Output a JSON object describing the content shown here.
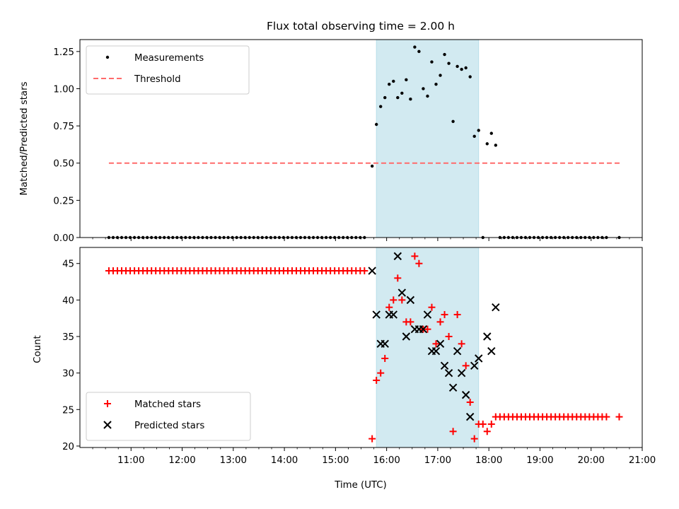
{
  "chart_data": [
    {
      "type": "scatter",
      "panel": "top",
      "title": "Flux total observing time = 2.00 h",
      "ylabel": "Matched/Predicted stars",
      "ylim": [
        0,
        1.33
      ],
      "yticks": [
        0.0,
        0.25,
        0.5,
        0.75,
        1.0,
        1.25
      ],
      "ytick_labels": [
        "0.00",
        "0.25",
        "0.50",
        "0.75",
        "1.00",
        "1.25"
      ],
      "highlight_span": {
        "start": "15:48",
        "end": "17:48",
        "color": "#add8e6"
      },
      "legend": {
        "placement": "top-left",
        "entries": [
          "Measurements",
          "Threshold"
        ]
      },
      "threshold": {
        "name": "Threshold",
        "value": 0.5,
        "x_start": "10:34",
        "x_end": "20:34",
        "color": "#ff6b6b"
      },
      "series": [
        {
          "name": "Measurements",
          "color": "#000000",
          "points": [
            [
              "15:43",
              0.48
            ],
            [
              "15:48",
              0.76
            ],
            [
              "15:53",
              0.88
            ],
            [
              "15:58",
              0.94
            ],
            [
              "16:03",
              1.03
            ],
            [
              "16:08",
              1.05
            ],
            [
              "16:13",
              0.94
            ],
            [
              "16:18",
              0.97
            ],
            [
              "16:23",
              1.06
            ],
            [
              "16:28",
              0.93
            ],
            [
              "16:33",
              1.28
            ],
            [
              "16:38",
              1.25
            ],
            [
              "16:43",
              1.0
            ],
            [
              "16:48",
              0.95
            ],
            [
              "16:53",
              1.18
            ],
            [
              "16:58",
              1.03
            ],
            [
              "17:03",
              1.09
            ],
            [
              "17:08",
              1.23
            ],
            [
              "17:13",
              1.17
            ],
            [
              "17:18",
              0.78
            ],
            [
              "17:23",
              1.15
            ],
            [
              "17:28",
              1.13
            ],
            [
              "17:33",
              1.14
            ],
            [
              "17:38",
              1.08
            ],
            [
              "17:43",
              0.68
            ],
            [
              "17:48",
              0.72
            ],
            [
              "17:53",
              0.0
            ],
            [
              "17:58",
              0.63
            ],
            [
              "18:03",
              0.7
            ],
            [
              "18:08",
              0.62
            ],
            [
              "20:33",
              0.0
            ]
          ],
          "zero_runs": [
            {
              "from": "10:34",
              "to": "13:29",
              "step_min": 5,
              "value": 0
            },
            {
              "from": "13:34",
              "to": "15:38",
              "step_min": 5,
              "value": 0
            },
            {
              "from": "18:13",
              "to": "20:18",
              "step_min": 5,
              "value": 0
            }
          ]
        }
      ]
    },
    {
      "type": "scatter",
      "panel": "bottom",
      "xlabel": "Time (UTC)",
      "ylabel": "Count",
      "xlim": [
        "10:00",
        "21:00"
      ],
      "ylim": [
        19.8,
        47.2
      ],
      "yticks": [
        20,
        25,
        30,
        35,
        40,
        45
      ],
      "ytick_labels": [
        "20",
        "25",
        "30",
        "35",
        "40",
        "45"
      ],
      "xticks": [
        "11:00",
        "12:00",
        "13:00",
        "14:00",
        "15:00",
        "16:00",
        "17:00",
        "18:00",
        "19:00",
        "20:00",
        "21:00"
      ],
      "highlight_span": {
        "start": "15:48",
        "end": "17:48",
        "color": "#add8e6"
      },
      "legend": {
        "placement": "bottom-left",
        "entries": [
          "Matched stars",
          "Predicted stars"
        ]
      },
      "series": [
        {
          "name": "Matched stars",
          "marker": "+",
          "color": "#ff0000",
          "points": [
            [
              "15:43",
              21
            ],
            [
              "15:48",
              29
            ],
            [
              "15:53",
              30
            ],
            [
              "15:58",
              32
            ],
            [
              "16:03",
              39
            ],
            [
              "16:08",
              40
            ],
            [
              "16:13",
              43
            ],
            [
              "16:18",
              40
            ],
            [
              "16:23",
              37
            ],
            [
              "16:28",
              37
            ],
            [
              "16:33",
              46
            ],
            [
              "16:38",
              45
            ],
            [
              "16:43",
              36
            ],
            [
              "16:48",
              36
            ],
            [
              "16:53",
              39
            ],
            [
              "16:58",
              34
            ],
            [
              "17:03",
              37
            ],
            [
              "17:08",
              38
            ],
            [
              "17:13",
              35
            ],
            [
              "17:18",
              22
            ],
            [
              "17:23",
              38
            ],
            [
              "17:28",
              34
            ],
            [
              "17:33",
              31
            ],
            [
              "17:38",
              26
            ],
            [
              "17:43",
              21
            ],
            [
              "17:48",
              23
            ],
            [
              "17:53",
              23
            ],
            [
              "17:58",
              22
            ],
            [
              "18:03",
              23
            ]
          ],
          "constant_runs": [
            {
              "from": "10:34",
              "to": "13:29",
              "step_min": 5,
              "value": 44
            },
            {
              "from": "13:34",
              "to": "15:38",
              "step_min": 5,
              "value": 44
            },
            {
              "from": "18:08",
              "to": "20:18",
              "step_min": 5,
              "value": 24
            },
            {
              "from": "20:33",
              "to": "20:33",
              "step_min": 5,
              "value": 24
            }
          ]
        },
        {
          "name": "Predicted stars",
          "marker": "x",
          "color": "#000000",
          "points": [
            [
              "15:43",
              44
            ],
            [
              "15:48",
              38
            ],
            [
              "15:53",
              34
            ],
            [
              "15:58",
              34
            ],
            [
              "16:03",
              38
            ],
            [
              "16:08",
              38
            ],
            [
              "16:13",
              46
            ],
            [
              "16:18",
              41
            ],
            [
              "16:23",
              35
            ],
            [
              "16:28",
              40
            ],
            [
              "16:33",
              36
            ],
            [
              "16:38",
              36
            ],
            [
              "16:43",
              36
            ],
            [
              "16:48",
              38
            ],
            [
              "16:53",
              33
            ],
            [
              "16:58",
              33
            ],
            [
              "17:03",
              34
            ],
            [
              "17:08",
              31
            ],
            [
              "17:13",
              30
            ],
            [
              "17:18",
              28
            ],
            [
              "17:23",
              33
            ],
            [
              "17:28",
              30
            ],
            [
              "17:33",
              27
            ],
            [
              "17:38",
              24
            ],
            [
              "17:43",
              31
            ],
            [
              "17:48",
              32
            ],
            [
              "17:58",
              35
            ],
            [
              "18:03",
              33
            ],
            [
              "18:08",
              39
            ]
          ]
        }
      ]
    }
  ]
}
